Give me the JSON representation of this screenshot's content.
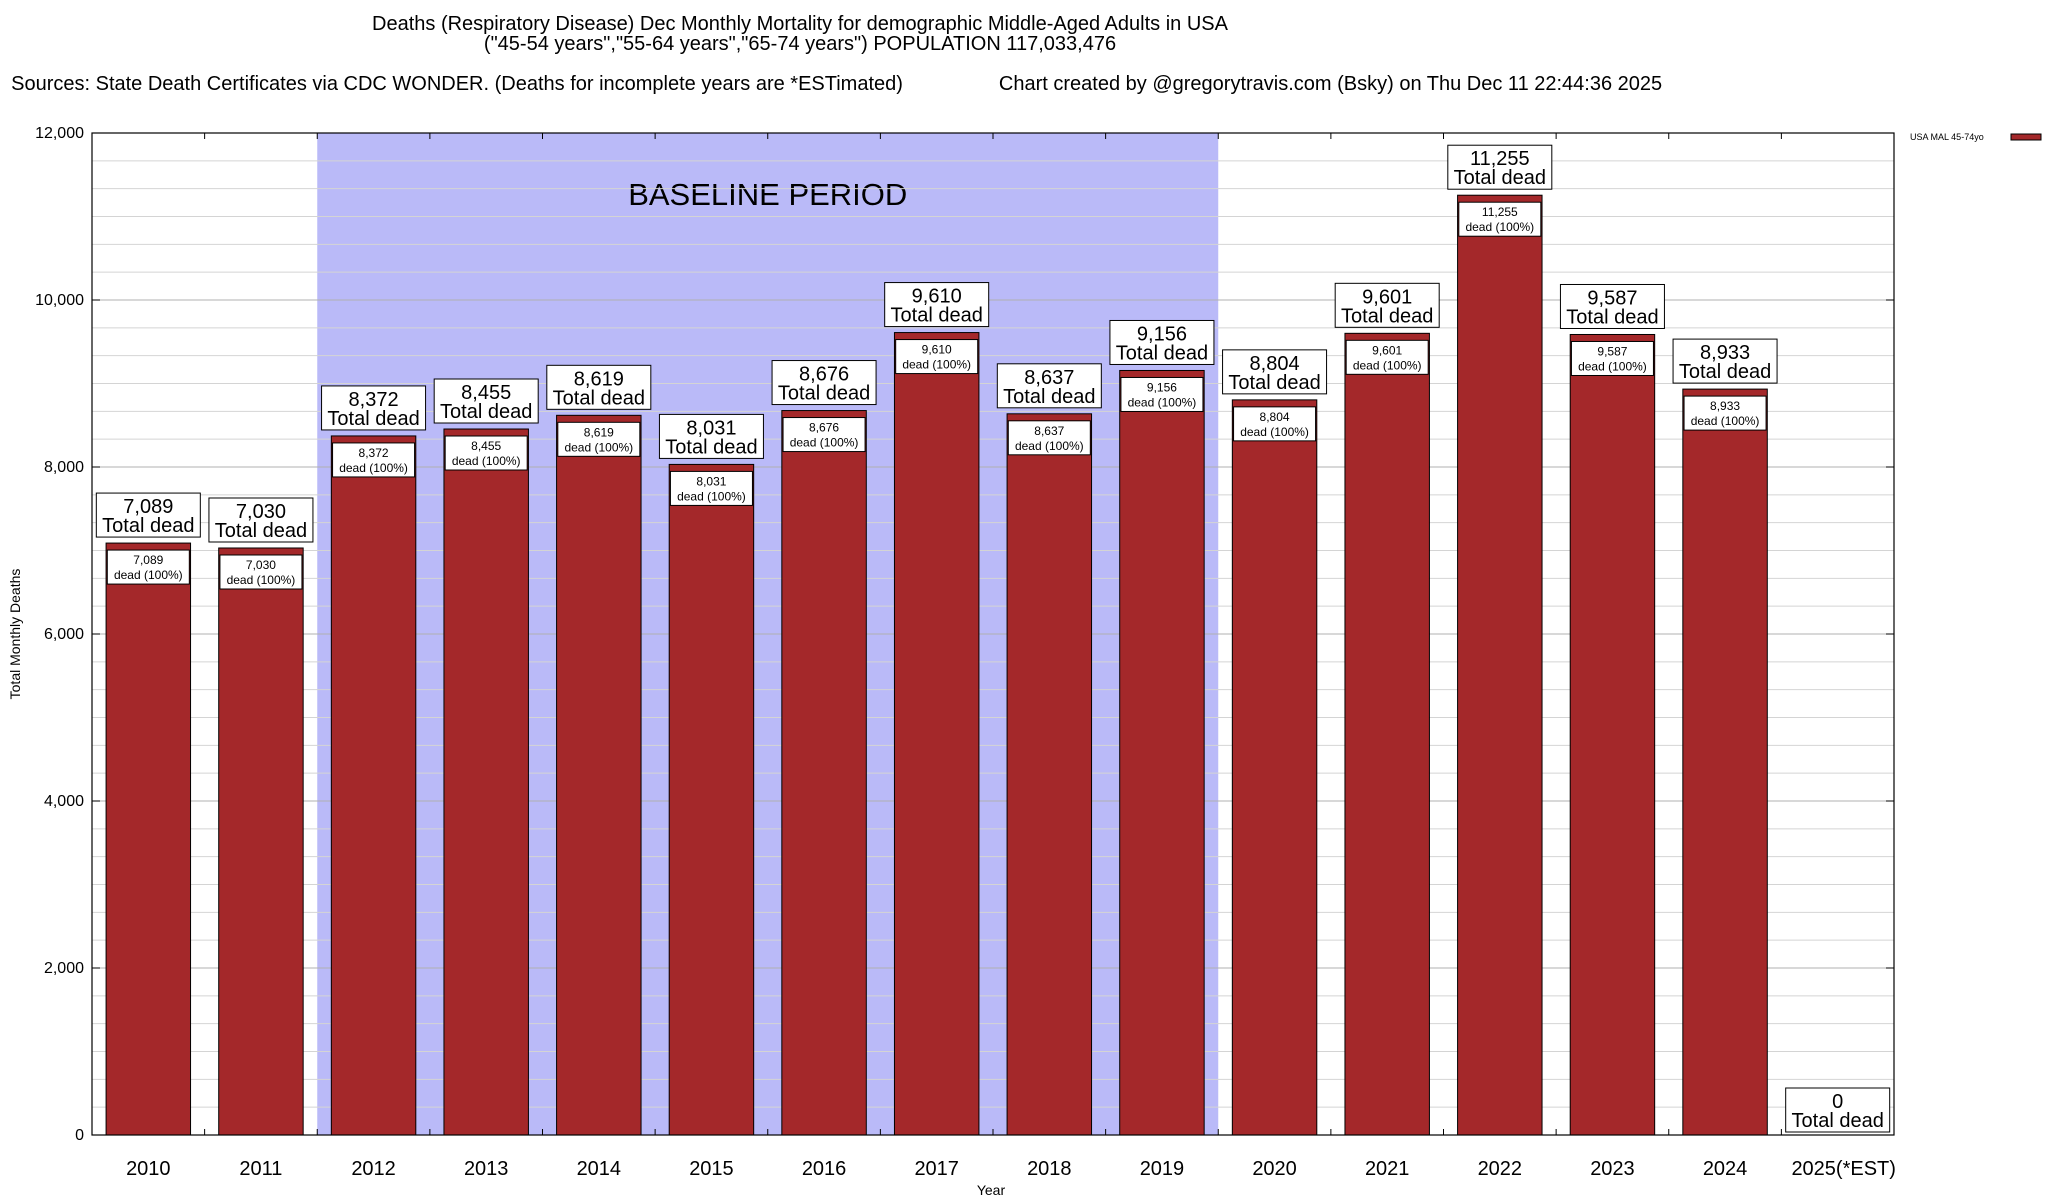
{
  "chart_data": {
    "type": "bar",
    "title": "Deaths (Respiratory Disease) Dec Monthly Mortality for demographic Middle-Aged Adults in USA",
    "subtitle": "(\"45-54 years\",\"55-64 years\",\"65-74 years\") POPULATION 117,033,476",
    "sources": "Sources: State Death Certificates via CDC WONDER. (Deaths for incomplete years are *ESTimated)",
    "credit": "Chart created by @gregorytravis.com (Bsky) on Thu Dec 11 22:44:36 2025",
    "xlabel": "Year",
    "ylabel": "Total Monthly Deaths",
    "ylim": [
      0,
      12000
    ],
    "yticks": [
      0,
      2000,
      4000,
      6000,
      8000,
      10000,
      12000
    ],
    "ytick_labels": [
      "0",
      "2,000",
      "4,000",
      "6,000",
      "8,000",
      "10,000",
      "12,000"
    ],
    "grid": true,
    "baseline_period": {
      "label": "BASELINE PERIOD",
      "start": "2012",
      "end": "2019"
    },
    "legend": {
      "position": "top-right",
      "entries": [
        "USA MAL 45-74yo"
      ]
    },
    "categories": [
      "2010",
      "2011",
      "2012",
      "2013",
      "2014",
      "2015",
      "2016",
      "2017",
      "2018",
      "2019",
      "2020",
      "2021",
      "2022",
      "2023",
      "2024",
      "2025(*EST)"
    ],
    "values": [
      7089,
      7030,
      8372,
      8455,
      8619,
      8031,
      8676,
      9610,
      8637,
      9156,
      8804,
      9601,
      11255,
      9587,
      8933,
      0
    ],
    "value_labels": [
      "7,089",
      "7,030",
      "8,372",
      "8,455",
      "8,619",
      "8,031",
      "8,676",
      "9,610",
      "8,637",
      "9,156",
      "8,804",
      "9,601",
      "11,255",
      "9,587",
      "8,933",
      "0"
    ],
    "total_suffix": "Total dead",
    "inner_suffix": "dead (100%)",
    "colors": {
      "bar": "#a4282a",
      "baseline": "#babaf8",
      "grid": "#c8c8c8"
    }
  }
}
